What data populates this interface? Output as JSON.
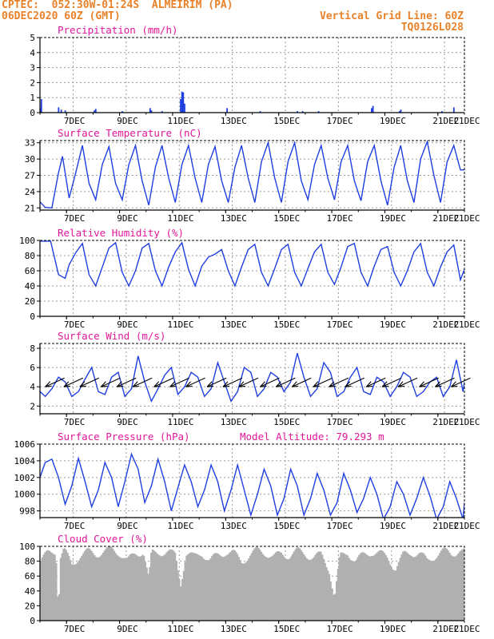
{
  "header": {
    "left_line1": "CPTEC:  052:30W-01:24S  ALMEIRIM (PA)",
    "left_line2": "06DEC2020 60Z (GMT)",
    "right_line1": "Vertical Grid Line: 60Z",
    "right_line2": "TQ0126L028"
  },
  "x_ticks": [
    "7DEC",
    "9DEC",
    "11DEC",
    "13DEC",
    "15DEC",
    "17DEC",
    "19DEC",
    "21DEC"
  ],
  "colors": {
    "line": "#1f3fe0",
    "bar": "#1f3fe0",
    "cloud": "#b0b0b0",
    "title": "#e0179a",
    "header": "#e8822a"
  },
  "chart_data": [
    {
      "type": "bar",
      "title": "Precipitation (mm/h)",
      "ylim": [
        0,
        5
      ],
      "yticks": [
        0,
        1,
        2,
        3,
        4,
        5
      ],
      "x_days": [
        0.02,
        0.05,
        0.7,
        0.8,
        0.95,
        2.05,
        2.1,
        3.1,
        4.15,
        4.2,
        4.6,
        5.3,
        5.35,
        5.4,
        5.45,
        7.05,
        8.3,
        9.7,
        9.9,
        10.5,
        12.5,
        12.55,
        13.55,
        13.6,
        15.15,
        15.6
      ],
      "values": [
        0.3,
        0.9,
        0.35,
        0.2,
        0.15,
        0.15,
        0.25,
        0.1,
        0.3,
        0.15,
        0.1,
        0.9,
        1.4,
        1.35,
        0.6,
        0.3,
        0.1,
        0.1,
        0.1,
        0.1,
        0.3,
        0.45,
        0.1,
        0.2,
        0.1,
        0.35
      ],
      "grid": true
    },
    {
      "type": "line",
      "title": "Surface Temperature (nC)",
      "ylim": [
        20.6,
        33.4
      ],
      "yticks": [
        21,
        24,
        27,
        30,
        33
      ],
      "x_days": [
        0,
        0.2,
        0.45,
        0.7,
        0.85,
        1.1,
        1.35,
        1.6,
        1.85,
        2.1,
        2.35,
        2.6,
        2.85,
        3.1,
        3.35,
        3.6,
        3.85,
        4.1,
        4.35,
        4.6,
        4.85,
        5.1,
        5.35,
        5.6,
        5.85,
        6.1,
        6.35,
        6.6,
        6.85,
        7.1,
        7.35,
        7.6,
        7.85,
        8.1,
        8.35,
        8.6,
        8.85,
        9.1,
        9.35,
        9.6,
        9.85,
        10.1,
        10.35,
        10.6,
        10.85,
        11.1,
        11.35,
        11.6,
        11.85,
        12.1,
        12.35,
        12.6,
        12.85,
        13.1,
        13.35,
        13.6,
        13.85,
        14.1,
        14.35,
        14.6,
        14.85,
        15.1,
        15.35,
        15.6,
        15.85,
        16
      ],
      "values": [
        22.1,
        21.1,
        21.0,
        27.5,
        30.5,
        22.8,
        27.5,
        32.5,
        25.5,
        22.5,
        29.0,
        32.3,
        25.5,
        22.5,
        29.0,
        32.5,
        26.0,
        21.5,
        28.5,
        32.5,
        26.5,
        22.0,
        29.0,
        32.5,
        26.5,
        22.0,
        29.0,
        32.3,
        26.0,
        22.0,
        28.5,
        32.5,
        26.5,
        22.0,
        29.5,
        33.0,
        26.5,
        22.0,
        29.5,
        33.0,
        26.0,
        22.5,
        29.0,
        32.5,
        26.5,
        22.5,
        29.5,
        32.5,
        26.0,
        22.3,
        29.5,
        32.5,
        26.0,
        21.5,
        28.5,
        32.5,
        26.0,
        22.0,
        30.0,
        33.2,
        27.0,
        22.0,
        29.5,
        32.5,
        28.0,
        28.0
      ],
      "grid": true
    },
    {
      "type": "line",
      "title": "Relative Humidity (%)",
      "ylim": [
        0,
        100
      ],
      "yticks": [
        0,
        20,
        40,
        60,
        80,
        100
      ],
      "x_days": [
        0,
        0.4,
        0.7,
        0.95,
        1.1,
        1.35,
        1.6,
        1.85,
        2.1,
        2.35,
        2.6,
        2.85,
        3.1,
        3.35,
        3.6,
        3.85,
        4.1,
        4.35,
        4.6,
        4.85,
        5.1,
        5.35,
        5.6,
        5.85,
        6.1,
        6.35,
        6.6,
        6.85,
        7.1,
        7.35,
        7.6,
        7.85,
        8.1,
        8.35,
        8.6,
        8.85,
        9.1,
        9.35,
        9.6,
        9.85,
        10.1,
        10.35,
        10.6,
        10.85,
        11.1,
        11.35,
        11.6,
        11.85,
        12.1,
        12.35,
        12.6,
        12.85,
        13.1,
        13.35,
        13.6,
        13.85,
        14.1,
        14.35,
        14.6,
        14.85,
        15.1,
        15.35,
        15.6,
        15.85,
        16
      ],
      "values": [
        99,
        99,
        55,
        50,
        68,
        84,
        96,
        55,
        40,
        65,
        90,
        97,
        58,
        40,
        60,
        90,
        96,
        60,
        40,
        65,
        85,
        97,
        62,
        40,
        66,
        78,
        82,
        88,
        60,
        40,
        65,
        88,
        95,
        58,
        40,
        63,
        88,
        95,
        58,
        40,
        63,
        85,
        95,
        58,
        42,
        65,
        92,
        96,
        58,
        40,
        66,
        88,
        92,
        58,
        40,
        60,
        85,
        96,
        58,
        40,
        65,
        85,
        94,
        48,
        62
      ],
      "grid": true
    },
    {
      "type": "line",
      "title": "Surface Wind (m/s)",
      "ylim": [
        1.2,
        8.5
      ],
      "yticks": [
        2,
        4,
        6,
        8
      ],
      "x_days": [
        0,
        0.2,
        0.45,
        0.7,
        0.95,
        1.2,
        1.45,
        1.7,
        1.95,
        2.2,
        2.45,
        2.7,
        2.95,
        3.2,
        3.45,
        3.7,
        3.95,
        4.2,
        4.45,
        4.7,
        4.95,
        5.2,
        5.45,
        5.7,
        5.95,
        6.2,
        6.45,
        6.7,
        6.95,
        7.2,
        7.45,
        7.7,
        7.95,
        8.2,
        8.45,
        8.7,
        8.95,
        9.2,
        9.45,
        9.7,
        9.95,
        10.2,
        10.45,
        10.7,
        10.95,
        11.2,
        11.45,
        11.7,
        11.95,
        12.2,
        12.45,
        12.7,
        12.95,
        13.2,
        13.45,
        13.7,
        13.95,
        14.2,
        14.45,
        14.7,
        14.95,
        15.2,
        15.45,
        15.7,
        15.95,
        16
      ],
      "values": [
        3.5,
        3.0,
        3.8,
        5.0,
        4.5,
        3.0,
        3.5,
        4.8,
        6.0,
        3.5,
        3.2,
        5.0,
        5.5,
        3.0,
        3.8,
        7.2,
        4.5,
        2.5,
        3.8,
        5.2,
        6.0,
        3.2,
        4.0,
        5.5,
        5.0,
        3.0,
        3.8,
        6.5,
        4.5,
        2.5,
        3.5,
        6.0,
        5.5,
        3.0,
        3.8,
        5.5,
        5.0,
        3.5,
        4.5,
        7.5,
        5.0,
        3.0,
        3.8,
        6.5,
        5.5,
        3.0,
        3.5,
        5.0,
        6.0,
        3.5,
        3.2,
        5.0,
        4.5,
        3.0,
        4.0,
        5.5,
        5.0,
        3.0,
        3.5,
        4.5,
        5.0,
        3.0,
        4.0,
        6.8,
        3.5,
        4.5
      ],
      "arrows_x_days": [
        0.2,
        0.9,
        1.5,
        2.3,
        2.9,
        3.5,
        4.3,
        4.9,
        5.5,
        6.3,
        6.9,
        7.5,
        8.3,
        8.9,
        9.5,
        10.3,
        10.9,
        11.5,
        12.3,
        12.9,
        13.5,
        14.3,
        14.9,
        15.5
      ],
      "grid": true
    },
    {
      "type": "line",
      "title": "Surface Pressure (hPa)",
      "annotation": "Model Altitude: 79.293 m",
      "ylim": [
        997.2,
        1006
      ],
      "yticks": [
        998,
        1000,
        1002,
        1004,
        1006
      ],
      "x_days": [
        0,
        0.2,
        0.45,
        0.7,
        0.95,
        1.2,
        1.45,
        1.7,
        1.95,
        2.2,
        2.45,
        2.7,
        2.95,
        3.2,
        3.45,
        3.7,
        3.95,
        4.2,
        4.45,
        4.7,
        4.95,
        5.2,
        5.45,
        5.7,
        5.95,
        6.2,
        6.45,
        6.7,
        6.95,
        7.2,
        7.45,
        7.7,
        7.95,
        8.2,
        8.45,
        8.7,
        8.95,
        9.2,
        9.45,
        9.7,
        9.95,
        10.2,
        10.45,
        10.7,
        10.95,
        11.2,
        11.45,
        11.7,
        11.95,
        12.2,
        12.45,
        12.7,
        12.95,
        13.2,
        13.45,
        13.7,
        13.95,
        14.2,
        14.45,
        14.7,
        14.95,
        15.2,
        15.45,
        15.7,
        15.95,
        16
      ],
      "values": [
        1002,
        1003.8,
        1004.2,
        1002,
        998.8,
        1001,
        1004.3,
        1001.5,
        998.5,
        1000.5,
        1003.8,
        1002,
        998.5,
        1001.5,
        1004.8,
        1003,
        999,
        1001,
        1004.2,
        1001.5,
        998,
        1000.8,
        1003.5,
        1001.5,
        998.5,
        1000.5,
        1003.5,
        1001.5,
        998,
        1000.5,
        1003.5,
        1000.5,
        997.5,
        1000,
        1003,
        1001,
        997.5,
        999.5,
        1003,
        1001,
        997.5,
        999.5,
        1002.5,
        1000.5,
        997.5,
        999,
        1002.5,
        1000.5,
        997.8,
        999.5,
        1002,
        1000,
        997,
        998.5,
        1001.5,
        1000,
        997.5,
        999.5,
        1002,
        999.8,
        997,
        998.5,
        1001.5,
        999.5,
        997,
        999
      ],
      "grid": true
    },
    {
      "type": "area",
      "title": "Cloud Cover (%)",
      "ylim": [
        0,
        100
      ],
      "yticks": [
        0,
        20,
        40,
        60,
        80,
        100
      ],
      "x_days": [
        0,
        0.3,
        0.6,
        0.7,
        0.75,
        0.9,
        1.2,
        1.5,
        1.8,
        2.1,
        2.4,
        2.7,
        3.0,
        3.3,
        3.6,
        3.9,
        4.1,
        4.2,
        4.5,
        4.8,
        5.1,
        5.3,
        5.5,
        5.8,
        6.1,
        6.4,
        6.7,
        7.0,
        7.3,
        7.6,
        7.9,
        8.2,
        8.5,
        8.8,
        9.1,
        9.4,
        9.7,
        10.0,
        10.3,
        10.6,
        10.9,
        11.1,
        11.3,
        11.6,
        11.9,
        12.2,
        12.5,
        12.8,
        13.1,
        13.4,
        13.7,
        14.0,
        14.3,
        14.6,
        14.9,
        15.2,
        15.5,
        15.8,
        16
      ],
      "values": [
        80,
        90,
        95,
        10,
        85,
        95,
        75,
        88,
        92,
        90,
        93,
        95,
        92,
        80,
        90,
        94,
        55,
        90,
        93,
        92,
        88,
        50,
        90,
        85,
        92,
        80,
        88,
        93,
        90,
        80,
        88,
        94,
        92,
        85,
        90,
        88,
        93,
        90,
        85,
        88,
        70,
        30,
        85,
        92,
        80,
        88,
        93,
        90,
        85,
        70,
        88,
        92,
        90,
        80,
        88,
        93,
        90,
        95,
        92
      ],
      "grid": true
    }
  ]
}
